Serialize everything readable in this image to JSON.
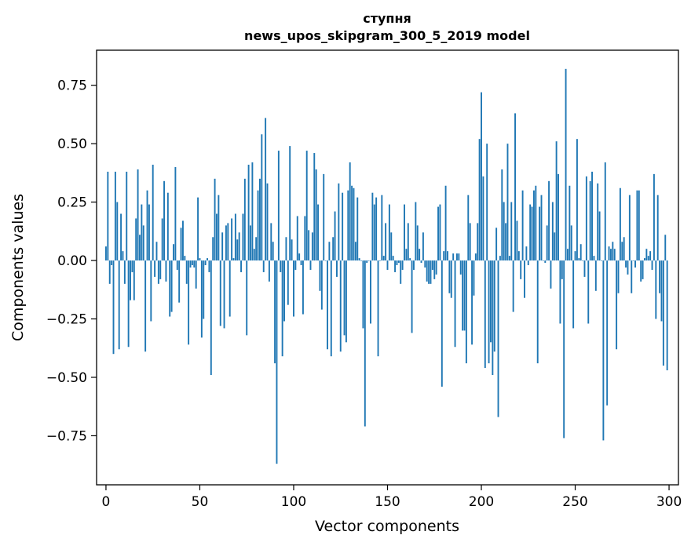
{
  "chart_data": {
    "type": "bar",
    "title": "ступня",
    "subtitle": "news_upos_skipgram_300_5_2019 model",
    "xlabel": "Vector components",
    "ylabel": "Components values",
    "xlim": [
      -5,
      305
    ],
    "ylim": [
      -0.96,
      0.9
    ],
    "xticks": [
      0,
      50,
      100,
      150,
      200,
      250,
      300
    ],
    "xtick_labels": [
      "0",
      "50",
      "100",
      "150",
      "200",
      "250",
      "300"
    ],
    "yticks": [
      -0.75,
      -0.5,
      -0.25,
      0.0,
      0.25,
      0.5,
      0.75
    ],
    "ytick_labels": [
      "−0.75",
      "−0.50",
      "−0.25",
      "0.00",
      "0.25",
      "0.50",
      "0.75"
    ],
    "grid": false,
    "bar_color": "#1f77b4",
    "x": [
      0,
      1,
      2,
      3,
      4,
      5,
      6,
      7,
      8,
      9,
      10,
      11,
      12,
      13,
      14,
      15,
      16,
      17,
      18,
      19,
      20,
      21,
      22,
      23,
      24,
      25,
      26,
      27,
      28,
      29,
      30,
      31,
      32,
      33,
      34,
      35,
      36,
      37,
      38,
      39,
      40,
      41,
      42,
      43,
      44,
      45,
      46,
      47,
      48,
      49,
      50,
      51,
      52,
      53,
      54,
      55,
      56,
      57,
      58,
      59,
      60,
      61,
      62,
      63,
      64,
      65,
      66,
      67,
      68,
      69,
      70,
      71,
      72,
      73,
      74,
      75,
      76,
      77,
      78,
      79,
      80,
      81,
      82,
      83,
      84,
      85,
      86,
      87,
      88,
      89,
      90,
      91,
      92,
      93,
      94,
      95,
      96,
      97,
      98,
      99,
      100,
      101,
      102,
      103,
      104,
      105,
      106,
      107,
      108,
      109,
      110,
      111,
      112,
      113,
      114,
      115,
      116,
      117,
      118,
      119,
      120,
      121,
      122,
      123,
      124,
      125,
      126,
      127,
      128,
      129,
      130,
      131,
      132,
      133,
      134,
      135,
      136,
      137,
      138,
      139,
      140,
      141,
      142,
      143,
      144,
      145,
      146,
      147,
      148,
      149,
      150,
      151,
      152,
      153,
      154,
      155,
      156,
      157,
      158,
      159,
      160,
      161,
      162,
      163,
      164,
      165,
      166,
      167,
      168,
      169,
      170,
      171,
      172,
      173,
      174,
      175,
      176,
      177,
      178,
      179,
      180,
      181,
      182,
      183,
      184,
      185,
      186,
      187,
      188,
      189,
      190,
      191,
      192,
      193,
      194,
      195,
      196,
      197,
      198,
      199,
      200,
      201,
      202,
      203,
      204,
      205,
      206,
      207,
      208,
      209,
      210,
      211,
      212,
      213,
      214,
      215,
      216,
      217,
      218,
      219,
      220,
      221,
      222,
      223,
      224,
      225,
      226,
      227,
      228,
      229,
      230,
      231,
      232,
      233,
      234,
      235,
      236,
      237,
      238,
      239,
      240,
      241,
      242,
      243,
      244,
      245,
      246,
      247,
      248,
      249,
      250,
      251,
      252,
      253,
      254,
      255,
      256,
      257,
      258,
      259,
      260,
      261,
      262,
      263,
      264,
      265,
      266,
      267,
      268,
      269,
      270,
      271,
      272,
      273,
      274,
      275,
      276,
      277,
      278,
      279,
      280,
      281,
      282,
      283,
      284,
      285,
      286,
      287,
      288,
      289,
      290,
      291,
      292,
      293,
      294,
      295,
      296,
      297,
      298,
      299
    ],
    "values": [
      0.06,
      0.38,
      -0.1,
      -0.02,
      -0.4,
      0.38,
      0.25,
      -0.38,
      0.2,
      0.04,
      -0.1,
      0.38,
      -0.37,
      -0.17,
      -0.05,
      -0.17,
      0.18,
      0.39,
      0.11,
      0.24,
      0.15,
      -0.39,
      0.3,
      0.24,
      -0.26,
      0.41,
      -0.07,
      0.08,
      -0.1,
      -0.08,
      0.18,
      0.34,
      -0.09,
      0.29,
      -0.24,
      -0.22,
      0.07,
      0.4,
      -0.04,
      -0.18,
      0.14,
      0.17,
      0.02,
      -0.1,
      -0.36,
      -0.03,
      -0.02,
      -0.03,
      -0.12,
      0.27,
      0.01,
      -0.33,
      -0.25,
      -0.02,
      0.01,
      -0.05,
      -0.49,
      0.1,
      0.35,
      0.2,
      0.28,
      -0.28,
      0.12,
      -0.29,
      0.15,
      0.16,
      -0.24,
      0.18,
      0.01,
      0.2,
      0.09,
      0.12,
      -0.05,
      0.2,
      0.35,
      -0.32,
      0.41,
      0.15,
      0.42,
      0.05,
      0.1,
      0.3,
      0.35,
      0.54,
      -0.05,
      0.61,
      0.33,
      -0.09,
      0.16,
      0.08,
      -0.44,
      -0.87,
      0.47,
      -0.05,
      -0.41,
      -0.26,
      0.1,
      -0.19,
      0.49,
      0.09,
      -0.24,
      -0.04,
      0.19,
      0.03,
      -0.02,
      -0.23,
      0.19,
      0.47,
      0.13,
      -0.04,
      0.12,
      0.46,
      0.39,
      0.24,
      -0.13,
      -0.21,
      0.37,
      0.0,
      -0.38,
      0.08,
      -0.41,
      0.1,
      0.21,
      -0.07,
      0.33,
      -0.39,
      0.29,
      -0.32,
      -0.35,
      0.3,
      0.42,
      0.32,
      0.31,
      0.08,
      0.27,
      0.01,
      0.0,
      -0.29,
      -0.71,
      -0.01,
      0.0,
      -0.27,
      0.29,
      0.24,
      0.27,
      -0.41,
      0.0,
      0.28,
      0.02,
      0.16,
      -0.04,
      0.24,
      0.12,
      0.02,
      -0.05,
      -0.02,
      -0.01,
      -0.1,
      -0.04,
      0.24,
      0.05,
      0.16,
      0.01,
      -0.31,
      -0.04,
      0.25,
      0.15,
      0.05,
      -0.01,
      0.12,
      -0.03,
      -0.09,
      -0.1,
      -0.1,
      -0.04,
      -0.08,
      -0.06,
      0.23,
      0.24,
      -0.54,
      0.04,
      0.32,
      0.04,
      -0.14,
      -0.16,
      0.03,
      -0.37,
      0.03,
      0.03,
      -0.06,
      -0.3,
      -0.3,
      -0.44,
      0.28,
      0.16,
      -0.36,
      -0.15,
      0.03,
      0.16,
      0.52,
      0.72,
      0.36,
      -0.46,
      0.5,
      -0.44,
      -0.35,
      -0.49,
      -0.39,
      0.14,
      -0.67,
      0.02,
      0.39,
      0.25,
      0.16,
      0.5,
      0.02,
      0.25,
      -0.22,
      0.63,
      0.17,
      0.04,
      -0.08,
      0.3,
      -0.16,
      0.06,
      -0.02,
      0.24,
      0.23,
      0.3,
      0.32,
      -0.44,
      0.23,
      0.28,
      0.0,
      -0.01,
      0.15,
      0.34,
      -0.12,
      0.25,
      0.12,
      0.51,
      0.37,
      -0.27,
      -0.08,
      -0.76,
      0.82,
      0.05,
      0.32,
      0.15,
      -0.29,
      0.04,
      0.52,
      0.01,
      0.07,
      0.0,
      -0.07,
      0.36,
      -0.27,
      0.34,
      0.38,
      0.02,
      -0.13,
      0.33,
      0.21,
      0.0,
      -0.77,
      0.42,
      -0.62,
      0.06,
      0.05,
      0.08,
      0.05,
      -0.38,
      -0.14,
      0.31,
      0.08,
      0.1,
      -0.03,
      -0.06,
      0.28,
      -0.14,
      0.0,
      -0.03,
      0.3,
      0.3,
      -0.09,
      -0.08,
      0.01,
      0.05,
      0.02,
      0.04,
      -0.04,
      0.37,
      -0.25,
      0.28,
      -0.14,
      -0.26,
      -0.45,
      0.11,
      -0.47
    ]
  }
}
